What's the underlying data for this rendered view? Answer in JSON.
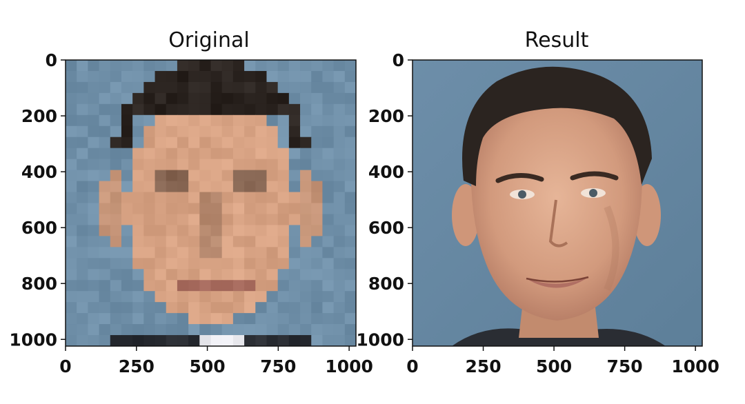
{
  "chart_data": [
    {
      "type": "image",
      "title": "Original",
      "image_content": "pixelated-face-portrait",
      "xlim": [
        0,
        1024
      ],
      "ylim": [
        1024,
        0
      ],
      "xticks": [
        0,
        250,
        500,
        750,
        1000
      ],
      "yticks": [
        0,
        200,
        400,
        600,
        800,
        1000
      ],
      "xtick_labels": [
        "0",
        "250",
        "500",
        "750",
        "1000"
      ],
      "ytick_labels": [
        "0",
        "200",
        "400",
        "600",
        "800",
        "1000"
      ]
    },
    {
      "type": "image",
      "title": "Result",
      "image_content": "reconstructed-face-portrait",
      "xlim": [
        0,
        1024
      ],
      "ylim": [
        1024,
        0
      ],
      "xticks": [
        0,
        250,
        500,
        750,
        1000
      ],
      "yticks": [
        0,
        200,
        400,
        600,
        800,
        1000
      ],
      "xtick_labels": [
        "0",
        "250",
        "500",
        "750",
        "1000"
      ],
      "ytick_labels": [
        "0",
        "200",
        "400",
        "600",
        "800",
        "1000"
      ]
    }
  ],
  "colors": {
    "background": "#6f8fa8",
    "skin": "#d7a283",
    "hair": "#2b2420",
    "lips": "#a86c5f",
    "suit": "#2a2d33"
  }
}
